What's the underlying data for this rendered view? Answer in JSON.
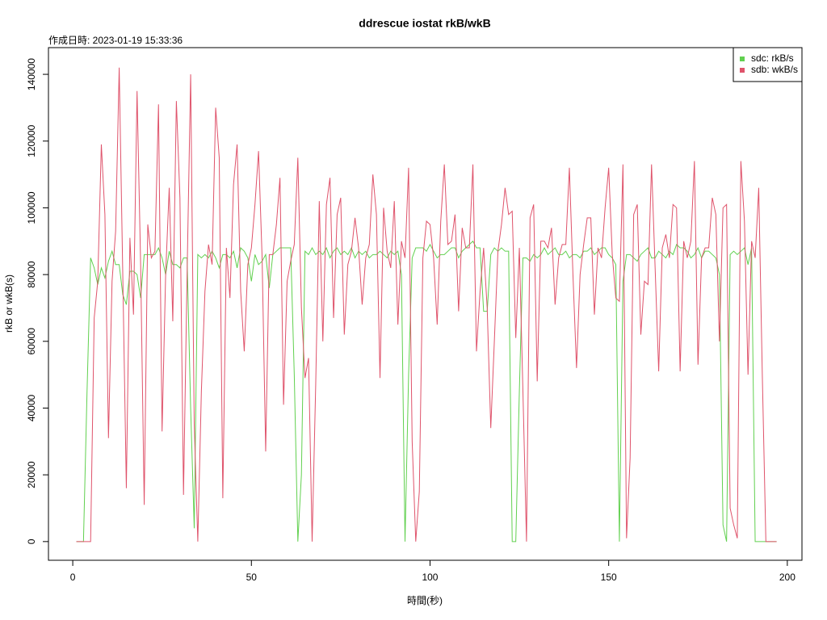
{
  "chart_data": {
    "type": "line",
    "title": "ddrescue iostat rkB/wkB",
    "subtitle": "作成日時: 2023-01-19 15:33:36",
    "x_label": "時間(秒)",
    "y_label": "rkB or wkB(s)",
    "legend": "top-right",
    "xlim": [
      -6.8,
      204.1
    ],
    "ylim": [
      -5600,
      148000
    ],
    "xticks": [
      0,
      50,
      100,
      150,
      200
    ],
    "yticks": [
      0,
      20000,
      40000,
      60000,
      80000,
      100000,
      120000,
      140000
    ],
    "x": [
      1,
      2,
      3,
      4,
      5,
      6,
      7,
      8,
      9,
      10,
      11,
      12,
      13,
      14,
      15,
      16,
      17,
      18,
      19,
      20,
      21,
      22,
      23,
      24,
      25,
      26,
      27,
      28,
      29,
      30,
      31,
      32,
      33,
      34,
      35,
      36,
      37,
      38,
      39,
      40,
      41,
      42,
      43,
      44,
      45,
      46,
      47,
      48,
      49,
      50,
      51,
      52,
      53,
      54,
      55,
      56,
      57,
      58,
      59,
      60,
      61,
      62,
      63,
      64,
      65,
      66,
      67,
      68,
      69,
      70,
      71,
      72,
      73,
      74,
      75,
      76,
      77,
      78,
      79,
      80,
      81,
      82,
      83,
      84,
      85,
      86,
      87,
      88,
      89,
      90,
      91,
      92,
      93,
      94,
      95,
      96,
      97,
      98,
      99,
      100,
      101,
      102,
      103,
      104,
      105,
      106,
      107,
      108,
      109,
      110,
      111,
      112,
      113,
      114,
      115,
      116,
      117,
      118,
      119,
      120,
      121,
      122,
      123,
      124,
      125,
      126,
      127,
      128,
      129,
      130,
      131,
      132,
      133,
      134,
      135,
      136,
      137,
      138,
      139,
      140,
      141,
      142,
      143,
      144,
      145,
      146,
      147,
      148,
      149,
      150,
      151,
      152,
      153,
      154,
      155,
      156,
      157,
      158,
      159,
      160,
      161,
      162,
      163,
      164,
      165,
      166,
      167,
      168,
      169,
      170,
      171,
      172,
      173,
      174,
      175,
      176,
      177,
      178,
      179,
      180,
      181,
      182,
      183,
      184,
      185,
      186,
      187,
      188,
      189,
      190,
      191,
      192,
      193,
      194,
      195,
      196,
      197
    ],
    "series": [
      {
        "name": "sdc: rkB/s",
        "color": "#61d04f",
        "values": [
          0,
          0,
          0,
          45000,
          85000,
          82000,
          77000,
          82000,
          79000,
          84000,
          87000,
          83000,
          83000,
          74000,
          71000,
          81000,
          81000,
          80000,
          73000,
          86000,
          86000,
          86000,
          86000,
          88000,
          85000,
          80000,
          87000,
          83000,
          83000,
          82000,
          85000,
          85000,
          40000,
          4000,
          86000,
          85000,
          86000,
          85000,
          87000,
          85000,
          82000,
          86000,
          86000,
          85000,
          87000,
          82000,
          88000,
          87000,
          85000,
          78000,
          86000,
          83000,
          84000,
          86000,
          76000,
          86000,
          87000,
          88000,
          88000,
          88000,
          88000,
          50000,
          0,
          20000,
          87000,
          86000,
          88000,
          86000,
          87000,
          86000,
          88000,
          85000,
          87000,
          88000,
          86000,
          87000,
          86000,
          88000,
          85000,
          87000,
          86000,
          87000,
          85000,
          86000,
          86000,
          87000,
          86000,
          85000,
          87000,
          86000,
          87000,
          80000,
          0,
          50000,
          85000,
          88000,
          88000,
          88000,
          87000,
          89000,
          87000,
          85000,
          86000,
          86000,
          87000,
          88000,
          88000,
          85000,
          87000,
          88000,
          89000,
          90000,
          88000,
          88000,
          69000,
          69000,
          86000,
          88000,
          87000,
          88000,
          87000,
          87000,
          0,
          0,
          45000,
          85000,
          85000,
          84000,
          86000,
          85000,
          86000,
          88000,
          86000,
          87000,
          88000,
          86000,
          86000,
          87000,
          85000,
          86000,
          86000,
          85000,
          87000,
          87000,
          88000,
          86000,
          87000,
          88000,
          88000,
          86000,
          85000,
          83000,
          0,
          78000,
          86000,
          86000,
          85000,
          84000,
          86000,
          87000,
          88000,
          85000,
          85000,
          87000,
          86000,
          85000,
          87000,
          86000,
          89000,
          88000,
          88000,
          87000,
          85000,
          86000,
          88000,
          85000,
          87000,
          87000,
          86000,
          85000,
          80000,
          5000,
          0,
          86000,
          87000,
          86000,
          87000,
          88000,
          83000,
          88000,
          0,
          0,
          0,
          0,
          0,
          0,
          0
        ]
      },
      {
        "name": "sdb: wkB/s",
        "color": "#df536b",
        "values": [
          0,
          0,
          0,
          0,
          0,
          67000,
          78000,
          119000,
          98000,
          31000,
          78000,
          93000,
          142000,
          80000,
          16000,
          91000,
          68000,
          135000,
          83000,
          11000,
          95000,
          85000,
          87000,
          131000,
          33000,
          80000,
          106000,
          66000,
          132000,
          103000,
          14000,
          80000,
          140000,
          35000,
          0,
          45000,
          75000,
          89000,
          83000,
          130000,
          115000,
          13000,
          88000,
          73000,
          107000,
          119000,
          75000,
          57000,
          83000,
          88000,
          101000,
          117000,
          85000,
          27000,
          86000,
          86000,
          95000,
          109000,
          41000,
          78000,
          84000,
          89000,
          115000,
          70000,
          49000,
          55000,
          0,
          47000,
          102000,
          60000,
          101000,
          109000,
          67000,
          98000,
          103000,
          62000,
          83000,
          87000,
          97000,
          88000,
          71000,
          85000,
          89000,
          110000,
          98000,
          49000,
          100000,
          87000,
          82000,
          102000,
          65000,
          90000,
          85000,
          112000,
          30000,
          0,
          15000,
          85000,
          96000,
          95000,
          85000,
          65000,
          96000,
          113000,
          89000,
          90000,
          98000,
          69000,
          94000,
          88000,
          88000,
          113000,
          57000,
          75000,
          88000,
          70000,
          34000,
          60000,
          87000,
          95000,
          106000,
          98000,
          99000,
          61000,
          88000,
          45000,
          0,
          97000,
          101000,
          48000,
          90000,
          90000,
          88000,
          94000,
          71000,
          85000,
          89000,
          89000,
          112000,
          80000,
          52000,
          80000,
          89000,
          97000,
          97000,
          68000,
          88000,
          85000,
          100000,
          112000,
          86000,
          73000,
          72000,
          113000,
          1000,
          25000,
          98000,
          101000,
          62000,
          78000,
          77000,
          113000,
          82000,
          51000,
          88000,
          92000,
          85000,
          101000,
          100000,
          51000,
          90000,
          85000,
          90000,
          114000,
          53000,
          85000,
          88000,
          88000,
          103000,
          98000,
          60000,
          100000,
          101000,
          10000,
          5000,
          1000,
          114000,
          96000,
          50000,
          90000,
          85000,
          106000,
          50000,
          0,
          0,
          0,
          0
        ]
      }
    ]
  }
}
